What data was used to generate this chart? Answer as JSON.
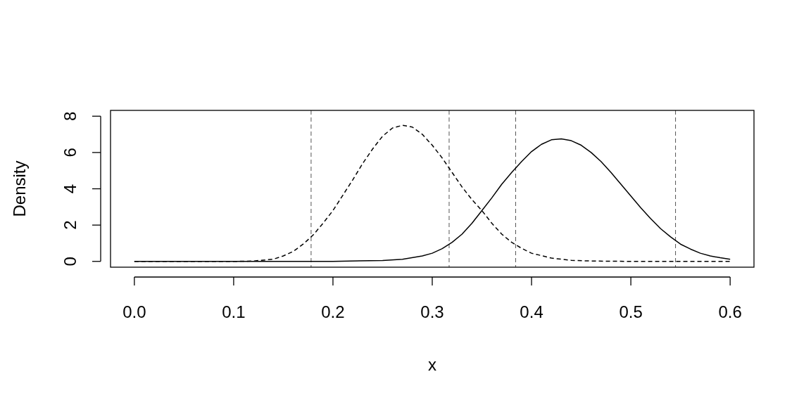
{
  "chart_data": {
    "type": "line",
    "xlabel": "x",
    "ylabel": "Density",
    "xlim": [
      -0.024,
      0.624
    ],
    "ylim": [
      -0.32,
      8.32
    ],
    "xticks": [
      {
        "value": 0,
        "label": "0.0"
      },
      0.1,
      0.2,
      0.3,
      0.4,
      0.5,
      0.6
    ],
    "yticks": [
      0,
      2,
      4,
      6,
      8
    ],
    "grid": false,
    "marker": "none",
    "series": [
      {
        "color": "#000000",
        "line_style": "dashed",
        "x": [
          0,
          0.1,
          0.12,
          0.14,
          0.15,
          0.16,
          0.17,
          0.18,
          0.19,
          0.2,
          0.21,
          0.22,
          0.23,
          0.24,
          0.25,
          0.26,
          0.27,
          0.28,
          0.29,
          0.3,
          0.31,
          0.32,
          0.33,
          0.34,
          0.35,
          0.36,
          0.37,
          0.38,
          0.39,
          0.4,
          0.42,
          0.44,
          0.46,
          0.5,
          0.6
        ],
        "values": [
          0,
          0,
          0.02,
          0.12,
          0.3,
          0.55,
          0.95,
          1.45,
          2.1,
          2.8,
          3.65,
          4.5,
          5.4,
          6.2,
          6.9,
          7.35,
          7.5,
          7.4,
          7,
          6.4,
          5.7,
          4.9,
          4.1,
          3.4,
          2.8,
          2.1,
          1.5,
          1.05,
          0.72,
          0.45,
          0.18,
          0.06,
          0.02,
          0,
          0
        ]
      },
      {
        "color": "#000000",
        "line_style": "solid",
        "x": [
          0,
          0.2,
          0.25,
          0.27,
          0.29,
          0.3,
          0.31,
          0.32,
          0.33,
          0.34,
          0.35,
          0.36,
          0.37,
          0.38,
          0.39,
          0.4,
          0.41,
          0.42,
          0.43,
          0.44,
          0.45,
          0.46,
          0.47,
          0.48,
          0.49,
          0.5,
          0.51,
          0.52,
          0.53,
          0.54,
          0.55,
          0.56,
          0.57,
          0.58,
          0.59,
          0.6
        ],
        "values": [
          0,
          0,
          0.05,
          0.12,
          0.3,
          0.45,
          0.7,
          1.05,
          1.5,
          2.1,
          2.8,
          3.5,
          4.25,
          4.9,
          5.5,
          6.05,
          6.45,
          6.7,
          6.75,
          6.65,
          6.4,
          6,
          5.5,
          4.9,
          4.25,
          3.6,
          2.95,
          2.35,
          1.8,
          1.35,
          0.95,
          0.68,
          0.45,
          0.3,
          0.2,
          0.12
        ]
      }
    ],
    "ref_lines": [
      {
        "axis": "x",
        "value": 0.178,
        "color": "#555555",
        "line_style": "dashed"
      },
      {
        "axis": "x",
        "value": 0.317,
        "color": "#555555",
        "line_style": "dashed"
      },
      {
        "axis": "x",
        "value": 0.384,
        "color": "#555555",
        "line_style": "dashed"
      },
      {
        "axis": "x",
        "value": 0.545,
        "color": "#555555",
        "line_style": "dashed"
      }
    ]
  }
}
